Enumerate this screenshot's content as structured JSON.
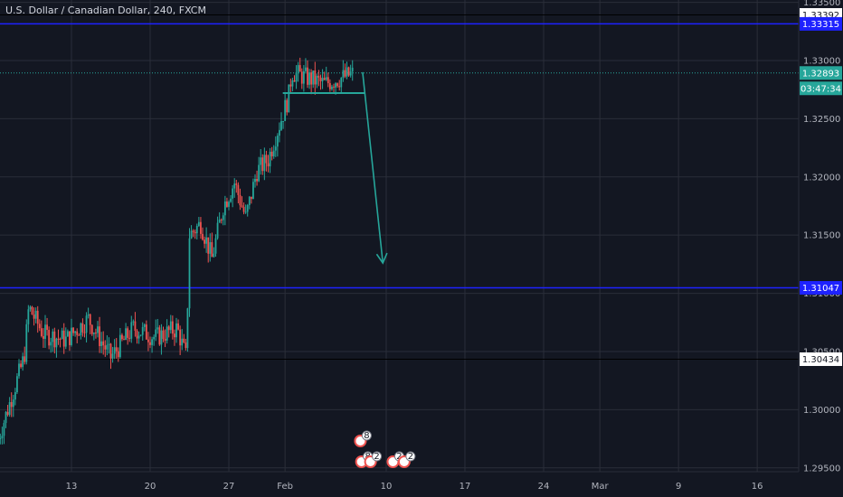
{
  "title": "U.S. Dollar / Canadian Dollar, 240, FXCM",
  "colors": {
    "background": "#131722",
    "grid": "#2a2e39",
    "axis_text": "#b2b5be",
    "up": "#26a69a",
    "down": "#ef5350",
    "blue_line": "#1e22ff",
    "black_line": "#000000",
    "price_line": "#26a69a",
    "arrow": "#26a69a"
  },
  "chart_data": {
    "type": "candlestick",
    "title": "U.S. Dollar / Canadian Dollar, 240, FXCM",
    "ylim": [
      1.2925,
      1.3352
    ],
    "y_ticks": [
      "1.33500",
      "1.33000",
      "1.32500",
      "1.32000",
      "1.31500",
      "1.31000",
      "1.30500",
      "1.30000",
      "1.29500"
    ],
    "x_ticks": [
      {
        "label": "13",
        "day": 13
      },
      {
        "label": "20",
        "day": 20
      },
      {
        "label": "27",
        "day": 27
      },
      {
        "label": "Feb",
        "day": 32
      },
      {
        "label": "10",
        "day": 41
      },
      {
        "label": "17",
        "day": 48
      },
      {
        "label": "24",
        "day": 55
      },
      {
        "label": "Mar",
        "day": 60
      },
      {
        "label": "9",
        "day": 67
      },
      {
        "label": "16",
        "day": 74
      }
    ],
    "horizontal_lines": [
      {
        "price": 1.33392,
        "label": "1.33392",
        "style": "black"
      },
      {
        "price": 1.33315,
        "label": "1.33315",
        "style": "blue"
      },
      {
        "price": 1.31047,
        "label": "1.31047",
        "style": "blue"
      },
      {
        "price": 1.30434,
        "label": "1.30434",
        "style": "black"
      }
    ],
    "current_price": {
      "price": 1.32893,
      "label": "1.32893",
      "countdown": "03:47:34"
    },
    "support_line": {
      "price": 1.3272,
      "from_day": 31.8,
      "to_day": 39.1
    },
    "arrow": {
      "from_day": 38.9,
      "from_price": 1.329,
      "to_day": 40.7,
      "to_price": 1.3126
    },
    "event_markers": [
      {
        "day": 38.7,
        "row": 1,
        "label": "8"
      },
      {
        "day": 38.8,
        "row": 2,
        "label": "8"
      },
      {
        "day": 39.6,
        "row": 2,
        "label": "2"
      },
      {
        "day": 41.6,
        "row": 2,
        "label": "2"
      },
      {
        "day": 42.6,
        "row": 2,
        "label": "2"
      }
    ],
    "anchors": [
      {
        "day": 6.5,
        "price": 1.2975
      },
      {
        "day": 8.8,
        "price": 1.3045
      },
      {
        "day": 9.2,
        "price": 1.3088
      },
      {
        "day": 10.5,
        "price": 1.3065
      },
      {
        "day": 12.5,
        "price": 1.306
      },
      {
        "day": 14.5,
        "price": 1.3078
      },
      {
        "day": 16.5,
        "price": 1.3045
      },
      {
        "day": 18.5,
        "price": 1.307
      },
      {
        "day": 20.5,
        "price": 1.3062
      },
      {
        "day": 22.4,
        "price": 1.307
      },
      {
        "day": 23.2,
        "price": 1.3045
      },
      {
        "day": 23.5,
        "price": 1.315
      },
      {
        "day": 24.5,
        "price": 1.316
      },
      {
        "day": 25.5,
        "price": 1.313
      },
      {
        "day": 26.5,
        "price": 1.3175
      },
      {
        "day": 27.5,
        "price": 1.3195
      },
      {
        "day": 28.5,
        "price": 1.3165
      },
      {
        "day": 29.5,
        "price": 1.3205
      },
      {
        "day": 30.5,
        "price": 1.3215
      },
      {
        "day": 31.5,
        "price": 1.3245
      },
      {
        "day": 32.3,
        "price": 1.3268
      },
      {
        "day": 32.6,
        "price": 1.329
      },
      {
        "day": 34.0,
        "price": 1.3285
      },
      {
        "day": 35.5,
        "price": 1.328
      },
      {
        "day": 37.0,
        "price": 1.3285
      },
      {
        "day": 38.1,
        "price": 1.3289
      }
    ]
  }
}
